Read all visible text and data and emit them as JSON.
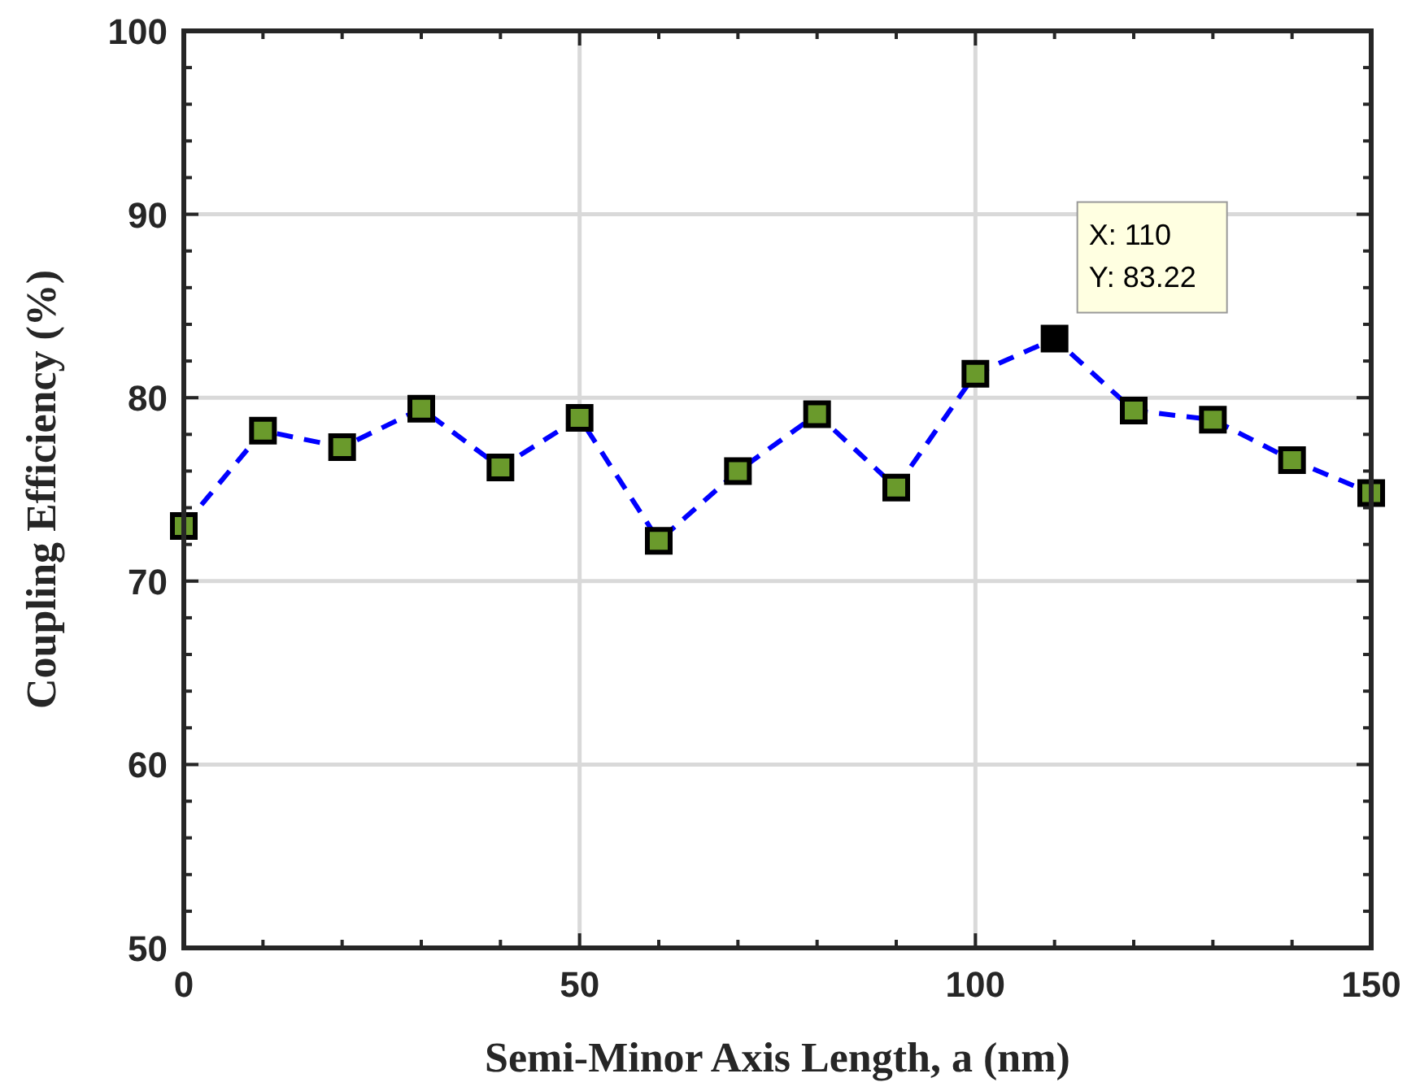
{
  "chart_data": {
    "type": "line",
    "xlabel": "Semi-Minor Axis Length, a (nm)",
    "ylabel": "Coupling Efficiency (%)",
    "x": [
      0,
      10,
      20,
      30,
      40,
      50,
      60,
      70,
      80,
      90,
      100,
      110,
      120,
      130,
      140,
      150
    ],
    "series": [
      {
        "values": [
          73.0,
          78.2,
          77.3,
          79.4,
          76.2,
          78.9,
          72.2,
          76.0,
          79.1,
          75.1,
          81.3,
          83.22,
          79.3,
          78.8,
          76.6,
          74.8
        ],
        "color": "#0000ff",
        "marker": "square",
        "line_style": "dashed",
        "colors": [
          "#6a9a2c",
          "#6a9a2c",
          "#6a9a2c",
          "#6a9a2c",
          "#6a9a2c",
          "#6a9a2c",
          "#6a9a2c",
          "#6a9a2c",
          "#6a9a2c",
          "#6a9a2c",
          "#6a9a2c",
          "#000000",
          "#6a9a2c",
          "#6a9a2c",
          "#6a9a2c",
          "#6a9a2c"
        ]
      }
    ],
    "xlim": [
      0,
      150
    ],
    "xticks": [
      0,
      50,
      100,
      150
    ],
    "ylim": [
      50,
      100
    ],
    "yticks": [
      50,
      60,
      70,
      80,
      90,
      100
    ],
    "grid": true,
    "annotations": [
      {
        "text": "X: 110\nY: 83.22",
        "x": 110,
        "y": 83.22
      }
    ]
  }
}
